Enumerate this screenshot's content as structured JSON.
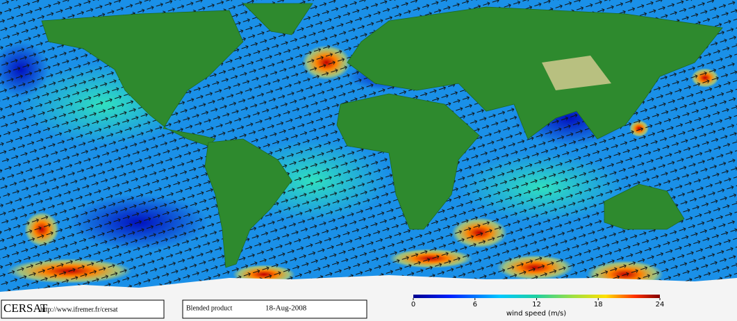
{
  "footer": {
    "logo": "CERSAT",
    "url": "http://www.ifremer.fr/cersat",
    "product": "Blended product",
    "date": "18-Aug-2008"
  },
  "colorbar": {
    "label": "wind speed (m/s)",
    "lim": [
      0,
      24
    ],
    "ticks": [
      0,
      6,
      12,
      18,
      24
    ]
  }
}
